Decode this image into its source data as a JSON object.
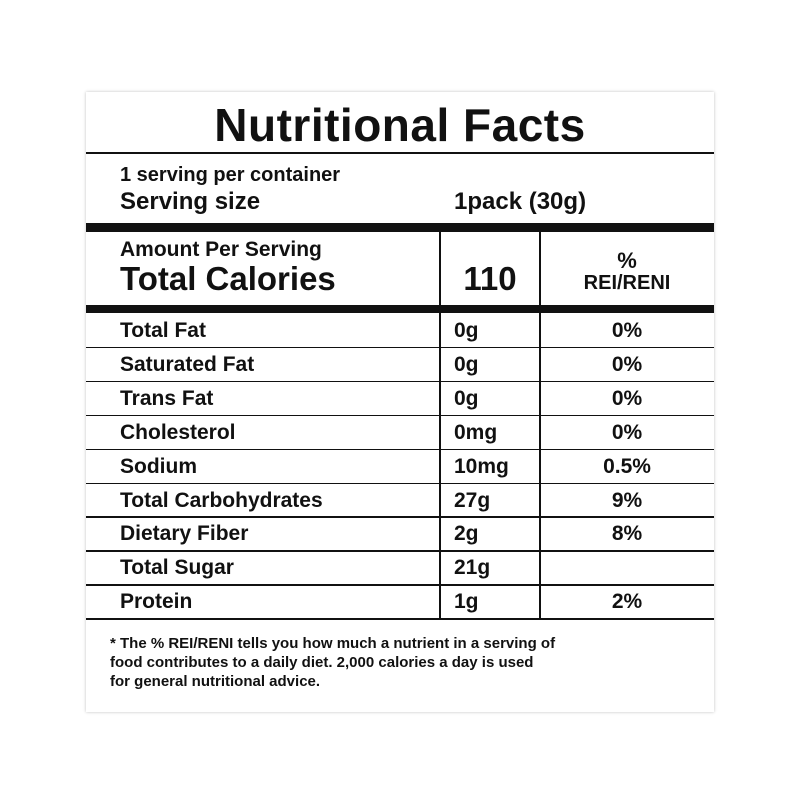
{
  "header": {
    "title": "Nutritional Facts"
  },
  "serving": {
    "per_container": "1 serving per container",
    "size_label": "Serving size",
    "size_value": "1pack (30g)"
  },
  "calories": {
    "amount_label": "Amount Per Serving",
    "label": "Total Calories",
    "value": "110",
    "dv_symbol": "%",
    "dv_label": "REI/RENI"
  },
  "table": {
    "rows": [
      [
        "Total Fat",
        "0g",
        "0%"
      ],
      [
        "Saturated Fat",
        "0g",
        "0%"
      ],
      [
        "Trans Fat",
        "0g",
        "0%"
      ],
      [
        "Cholesterol",
        "0mg",
        "0%"
      ],
      [
        "Sodium",
        "10mg",
        "0.5%"
      ],
      [
        "Total Carbohydrates",
        "27g",
        "9%"
      ],
      [
        "Dietary Fiber",
        "2g",
        "8%"
      ],
      [
        "Total Sugar",
        "21g"
      ],
      [
        "Protein",
        "1g",
        "2%"
      ]
    ]
  },
  "footnote": {
    "lines": [
      "* The % REI/RENI tells you how much a nutrient in a serving of",
      "food contributes to a daily diet. 2,000 calories a day is used",
      "for general nutritional advice."
    ]
  }
}
